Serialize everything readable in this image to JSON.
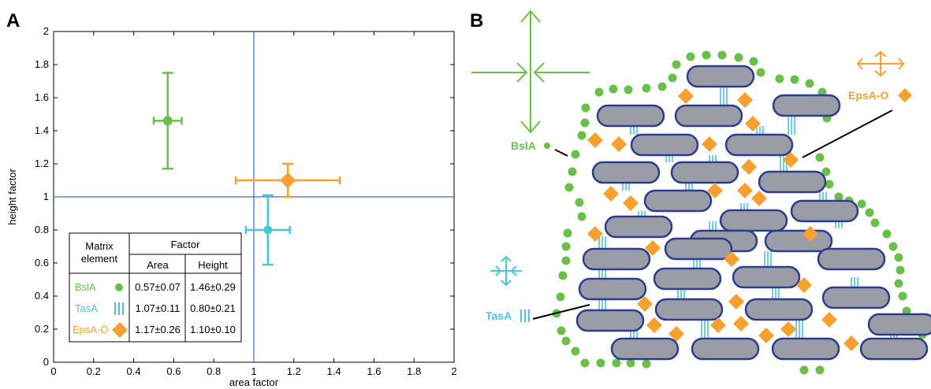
{
  "panels": {
    "a_label": "A",
    "b_label": "B"
  },
  "chart_data": {
    "type": "scatter",
    "xlabel": "area factor",
    "ylabel": "height factor",
    "xlim": [
      0,
      2
    ],
    "ylim": [
      0,
      2
    ],
    "xticks": [
      "0",
      "0.2",
      "0.4",
      "0.6",
      "0.8",
      "1",
      "1.2",
      "1.4",
      "1.6",
      "1.8",
      "2"
    ],
    "yticks": [
      "0",
      "0.2",
      "0.4",
      "0.6",
      "0.8",
      "1",
      "1.2",
      "1.4",
      "1.6",
      "1.8",
      "2"
    ],
    "reference_lines": {
      "x": 1,
      "y": 1
    },
    "series": [
      {
        "name": "BslA",
        "marker": "circle",
        "color": "#6abf4b",
        "x": 0.57,
        "x_err": 0.07,
        "y": 1.46,
        "y_err": 0.29
      },
      {
        "name": "TasA",
        "marker": "lines",
        "color": "#4fc3d9",
        "x": 1.07,
        "x_err": 0.11,
        "y": 0.8,
        "y_err": 0.21
      },
      {
        "name": "EpsA-O",
        "marker": "diamond",
        "color": "#f7a030",
        "x": 1.17,
        "x_err": 0.26,
        "y": 1.1,
        "y_err": 0.1
      }
    ],
    "table": {
      "header_left_1": "Matrix",
      "header_left_2": "element",
      "header_factor": "Factor",
      "col_area": "Area",
      "col_height": "Height",
      "rows": [
        {
          "name": "BslA",
          "area": "0.57±0.07",
          "height": "1.46±0.29"
        },
        {
          "name": "TasA",
          "area": "1.07±0.11",
          "height": "0.80±0.21"
        },
        {
          "name": "EpsA-O",
          "area": "1.17±0.26",
          "height": "1.10±0.10"
        }
      ]
    }
  },
  "diagram": {
    "labels": {
      "bsla": "BslA",
      "tasa": "TasA",
      "epsa": "EpsA-O"
    }
  },
  "colors": {
    "axis_line": "#3a6fc4",
    "cell_fill": "#9a9ca6",
    "cell_stroke": "#2e3d8f"
  }
}
